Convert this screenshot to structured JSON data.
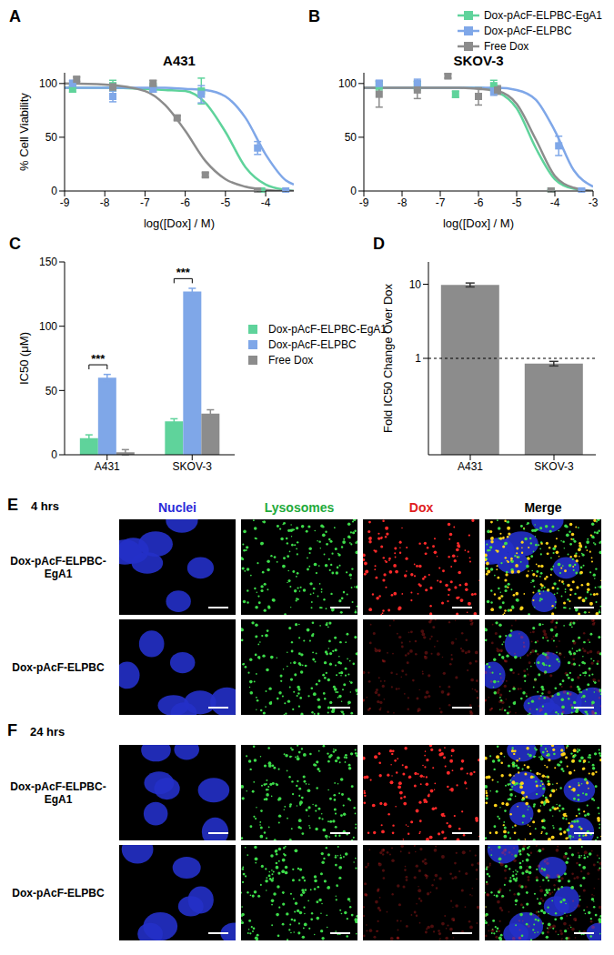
{
  "chart_data": [
    {
      "panel": "A",
      "type": "scatter",
      "title": "A431",
      "x_label": "log([Dox] / M)",
      "y_label": "% Cell Viability",
      "xlim": [
        -9,
        -3.3
      ],
      "xticks": [
        -9,
        -8,
        -7,
        -6,
        -5,
        -4
      ],
      "ylim": [
        0,
        110
      ],
      "yticks": [
        0,
        50,
        100
      ],
      "series": [
        {
          "name": "Dox-pAcF-ELPBC-EgA1",
          "color": "#5fd39b",
          "marker": "square",
          "x": [
            -8.8,
            -7.8,
            -6.8,
            -5.6,
            -4.1
          ],
          "values": [
            95,
            98,
            96,
            93,
            0
          ],
          "errors": [
            3,
            5,
            4,
            12,
            1
          ],
          "fit_x": [
            -9,
            -8,
            -7,
            -6.5,
            -6,
            -5.5,
            -5,
            -4.5,
            -4,
            -3.5,
            -3.3
          ],
          "fit_values": [
            96,
            96,
            95,
            94,
            93,
            82,
            55,
            22,
            6,
            1,
            0
          ]
        },
        {
          "name": "Dox-pAcF-ELPBC",
          "color": "#7fa7e8",
          "marker": "square",
          "x": [
            -8.8,
            -7.8,
            -6.8,
            -5.6,
            -4.2,
            -3.5
          ],
          "values": [
            100,
            88,
            95,
            90,
            40,
            0
          ],
          "errors": [
            3,
            5,
            3,
            8,
            6,
            1
          ],
          "fit_x": [
            -9,
            -8,
            -7,
            -6.5,
            -6,
            -5.5,
            -5,
            -4.5,
            -4,
            -3.5,
            -3.3
          ],
          "fit_values": [
            96,
            96,
            96,
            96,
            95,
            94,
            88,
            68,
            34,
            10,
            6
          ]
        },
        {
          "name": "Free Dox",
          "color": "#8c8c8c",
          "marker": "square",
          "x": [
            -8.7,
            -7.8,
            -6.8,
            -6.2,
            -5.5,
            -4.2
          ],
          "values": [
            104,
            97,
            100,
            68,
            15,
            0
          ],
          "errors": [
            2,
            3,
            3,
            2,
            2,
            1
          ],
          "fit_x": [
            -9,
            -8,
            -7,
            -6.5,
            -6,
            -5.5,
            -5,
            -4.5,
            -4,
            -3.5,
            -3.3
          ],
          "fit_values": [
            100,
            99,
            93,
            80,
            56,
            28,
            11,
            4,
            1,
            0,
            0
          ]
        }
      ]
    },
    {
      "panel": "B",
      "type": "scatter",
      "title": "SKOV-3",
      "x_label": "log([Dox] / M)",
      "xlim": [
        -9,
        -3
      ],
      "xticks": [
        -9,
        -8,
        -7,
        -6,
        -5,
        -4,
        -3
      ],
      "ylim": [
        0,
        110
      ],
      "yticks": [
        0,
        50,
        100
      ],
      "legend": "upper right",
      "series": [
        {
          "name": "Dox-pAcF-ELPBC-EgA1",
          "color": "#5fd39b",
          "marker": "square",
          "x": [
            -8.6,
            -7.6,
            -6.6,
            -5.6,
            -4.1
          ],
          "values": [
            98,
            98,
            90,
            98,
            0
          ],
          "errors": [
            4,
            4,
            3,
            5,
            1
          ],
          "fit_x": [
            -9,
            -8,
            -7,
            -6.5,
            -6,
            -5.5,
            -5,
            -4.5,
            -4,
            -3.5,
            -3
          ],
          "fit_values": [
            96,
            96,
            96,
            96,
            96,
            92,
            77,
            40,
            11,
            2,
            0
          ]
        },
        {
          "name": "Dox-pAcF-ELPBC",
          "color": "#7fa7e8",
          "marker": "square",
          "x": [
            -8.6,
            -7.6,
            -5.6,
            -3.9,
            -3.3
          ],
          "values": [
            100,
            100,
            93,
            42,
            0
          ],
          "errors": [
            3,
            4,
            4,
            9,
            1
          ],
          "fit_x": [
            -9,
            -8,
            -7,
            -6.5,
            -6,
            -5.5,
            -5,
            -4.5,
            -4,
            -3.5,
            -3
          ],
          "fit_values": [
            96,
            96,
            96,
            96,
            96,
            96,
            94,
            85,
            56,
            19,
            4
          ]
        },
        {
          "name": "Free Dox",
          "color": "#8c8c8c",
          "marker": "square",
          "x": [
            -8.6,
            -7.6,
            -6.8,
            -6.0,
            -5.5,
            -4.1
          ],
          "values": [
            90,
            94,
            107,
            88,
            94,
            0
          ],
          "errors": [
            12,
            8,
            2,
            8,
            4,
            1
          ],
          "fit_x": [
            -9,
            -8,
            -7,
            -6.5,
            -6,
            -5.5,
            -5,
            -4.5,
            -4,
            -3.5,
            -3
          ],
          "fit_values": [
            96,
            96,
            96,
            96,
            95,
            93,
            81,
            48,
            14,
            3,
            0
          ]
        }
      ]
    },
    {
      "panel": "C",
      "type": "bar",
      "y_label": "IC50 (μM)",
      "categories": [
        "A431",
        "SKOV-3"
      ],
      "ylim": [
        0,
        150
      ],
      "yticks": [
        0,
        50,
        100,
        150
      ],
      "legend": "right",
      "series": [
        {
          "name": "Dox-pAcF-ELPBC-EgA1",
          "color": "#5fd39b",
          "values": [
            13,
            26
          ],
          "errors": [
            2.5,
            2
          ]
        },
        {
          "name": "Dox-pAcF-ELPBC",
          "color": "#7fa7e8",
          "values": [
            60,
            127
          ],
          "errors": [
            2.5,
            2.5
          ]
        },
        {
          "name": "Free Dox",
          "color": "#8c8c8c",
          "values": [
            2,
            32
          ],
          "errors": [
            2,
            3
          ]
        }
      ],
      "annotations": [
        {
          "text": "***",
          "category": "A431",
          "y": 70
        },
        {
          "text": "***",
          "category": "SKOV-3",
          "y": 137
        }
      ]
    },
    {
      "panel": "D",
      "type": "bar",
      "y_label": "Fold IC50 Change Over Dox",
      "categories": [
        "A431",
        "SKOV-3"
      ],
      "values": [
        9.8,
        0.85
      ],
      "errors": [
        0.6,
        0.06
      ],
      "color": "#8c8c8c",
      "log": "y",
      "ylim": [
        0.05,
        20
      ],
      "yticks": [
        1,
        10
      ],
      "reference_line": 1
    }
  ],
  "microscopy": {
    "columns": [
      {
        "label": "Nuclei",
        "color": "#2b2bd9"
      },
      {
        "label": "Lysosomes",
        "color": "#1faa3a"
      },
      {
        "label": "Dox",
        "color": "#e02020"
      },
      {
        "label": "Merge",
        "color": "#000000"
      }
    ],
    "panels": [
      {
        "panel": "E",
        "time": "4 hrs",
        "rows": [
          "Dox-pAcF-ELPBC-EgA1",
          "Dox-pAcF-ELPBC"
        ]
      },
      {
        "panel": "F",
        "time": "24 hrs",
        "rows": [
          "Dox-pAcF-ELPBC-EgA1",
          "Dox-pAcF-ELPBC"
        ]
      }
    ]
  }
}
